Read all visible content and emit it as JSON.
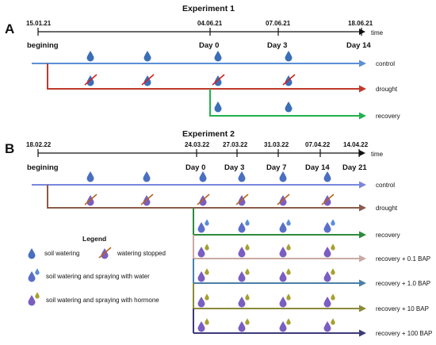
{
  "exp1": {
    "panel": "A",
    "title": "Experiment 1",
    "dates": [
      "15.01.21",
      "04.06.21",
      "07.06.21",
      "18.06.21"
    ],
    "time_label": "time",
    "start_label": "begining",
    "days": [
      "Day 0",
      "Day 3",
      "Day 14"
    ],
    "lines": [
      "control",
      "drought",
      "recovery"
    ],
    "colors": {
      "control": "#5b8fd6",
      "drought": "#c0392b",
      "recovery": "#22b14c"
    }
  },
  "exp2": {
    "panel": "B",
    "title": "Experiment 2",
    "dates": [
      "18.02.22",
      "24.03.22",
      "27.03.22",
      "31.03.22",
      "07.04.22",
      "14.04.22"
    ],
    "time_label": "time",
    "start_label": "begining",
    "days": [
      "Day 0",
      "Day 3",
      "Day 7",
      "Day 14",
      "Day 21"
    ],
    "lines": [
      "control",
      "drought",
      "recovery",
      "recovery + 0.1 BAP",
      "recovery + 1.0 BAP",
      "recovery + 10 BAP",
      "recovery + 100 BAP"
    ],
    "colors": {
      "control": "#7a86dd",
      "drought": "#8b5a4a",
      "recovery": "#2e8b3d",
      "bap01": "#c9a9a4",
      "bap1": "#4a7fa8",
      "bap10": "#8a8a3a",
      "bap100": "#3d3a7a"
    }
  },
  "legend": {
    "title": "Legend",
    "soil_watering": "soil watering",
    "watering_stopped": "watering stopped",
    "spray_water": "soil watering and spraying with water",
    "spray_hormone": "soil watering and spraying with hormone"
  },
  "icon_names": [
    "water-drop-icon",
    "stopped-drop-icon",
    "water-spray-drop-icon",
    "hormone-spray-drop-icon"
  ]
}
